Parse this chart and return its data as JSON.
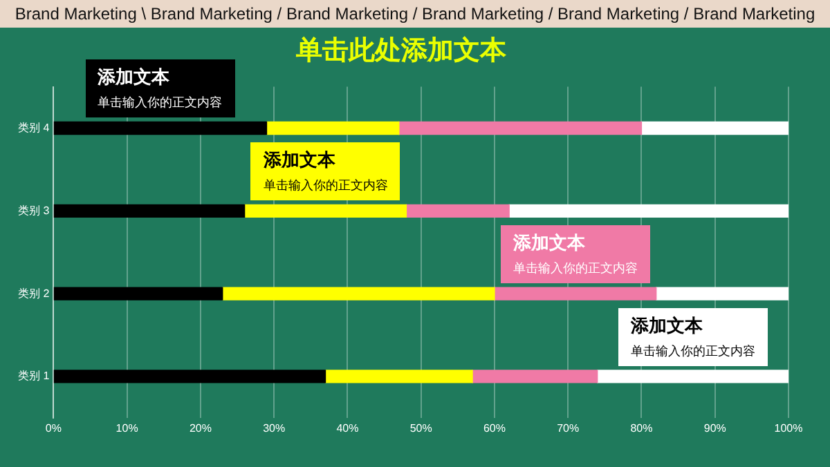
{
  "chart_data": {
    "type": "bar",
    "orientation": "horizontal",
    "stacked": true,
    "title": "单击此处添加文本",
    "categories": [
      "类别 4",
      "类别 3",
      "类别 2",
      "类别 1"
    ],
    "series": [
      {
        "color": "#000000",
        "values": [
          29,
          26,
          23,
          37
        ]
      },
      {
        "color": "#ffff00",
        "values": [
          18,
          22,
          37,
          20
        ]
      },
      {
        "color": "#f07aa6",
        "values": [
          33,
          14,
          22,
          17
        ]
      },
      {
        "color": "#ffffff",
        "values": [
          20,
          38,
          18,
          26
        ]
      }
    ],
    "xlim": [
      0,
      100
    ],
    "xticks": [
      {
        "value": 0,
        "label": "0%"
      },
      {
        "value": 10,
        "label": "10%"
      },
      {
        "value": 20,
        "label": "20%"
      },
      {
        "value": 30,
        "label": "30%"
      },
      {
        "value": 40,
        "label": "40%"
      },
      {
        "value": 50,
        "label": "50%"
      },
      {
        "value": 60,
        "label": "60%"
      },
      {
        "value": 70,
        "label": "70%"
      },
      {
        "value": 80,
        "label": "80%"
      },
      {
        "value": 90,
        "label": "90%"
      },
      {
        "value": 100,
        "label": "100%"
      }
    ],
    "grid": "x",
    "annotations": [
      "Brand Marketing \\ Brand Marketing / Brand Marketing / Brand Marketing / Brand Marketing / Brand Marketing",
      "添加文本",
      "单击输入你的正文内容",
      "添加文本",
      "单击输入你的正文内容",
      "添加文本",
      "单击输入你的正文内容",
      "添加文本",
      "单击输入你的正文内容"
    ]
  }
}
